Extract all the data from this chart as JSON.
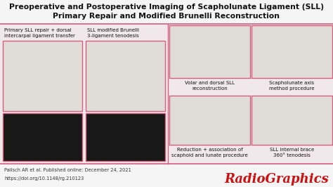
{
  "title_line1": "Preoperative and Postoperative Imaging of Scapholunate Ligament (SLL)",
  "title_line2": "Primary Repair and Modified Brunelli Reconstruction",
  "bg_color": "#f0e8ea",
  "content_bg": "#f0e8ea",
  "title_bg": "#f5f5f5",
  "footer_bg": "#f5f5f5",
  "footer_line1": "Palisch AR et al. Published online: December 24, 2021",
  "footer_line2": "https://doi.org/10.1148/rg.210123",
  "radiographics_text": "RadioGraphics",
  "radiographics_color": "#cc1111",
  "left_label1": "Primary SLL repair + dorsal\nintercarpal ligament transfer",
  "left_label2": "SLL modified Brunelli\n3-ligament tenodesis",
  "right_col_labels": [
    "Volar and dorsal SLL\nreconstruction",
    "Scapholunate axis\nmethod procedure",
    "Reduction + association of\nscaphoid and lunate procedure",
    "SLL internal brace\n360° tenodesis"
  ],
  "image_bg_anatomy": "#e0dcd8",
  "image_bg_mri": "#181818",
  "border_color": "#d46080",
  "title_color": "#111111",
  "label_color": "#111111",
  "divider_color": "#d46080",
  "footer_text_color": "#333333",
  "title_fontsize": 7.8,
  "label_fontsize": 5.0,
  "footer_fontsize": 4.8,
  "radio_fontsize": 13
}
